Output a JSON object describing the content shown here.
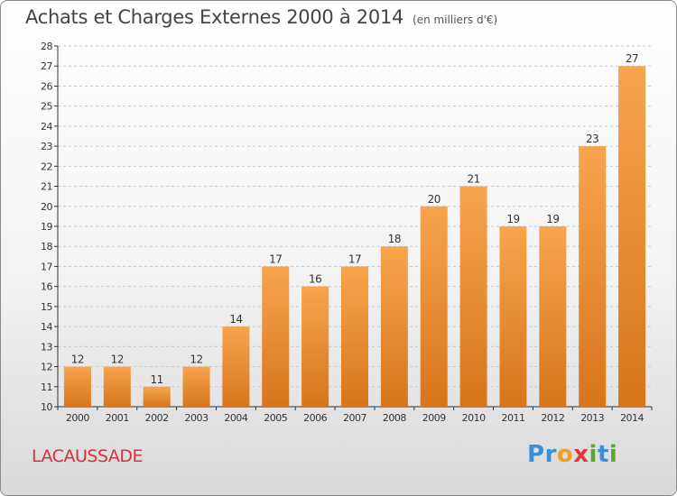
{
  "header": {
    "title": "Achats et Charges Externes 2000 à 2014",
    "unit": "(en milliers d'€)"
  },
  "commune": "LACAUSSADE",
  "logo": {
    "text": "Proxiti",
    "letters": [
      {
        "ch": "P",
        "color": "#3b8fd6"
      },
      {
        "ch": "r",
        "color": "#3b8fd6"
      },
      {
        "ch": "o",
        "color": "#f0a020"
      },
      {
        "ch": "x",
        "color": "#d93a3a"
      },
      {
        "ch": "i",
        "color": "#5aa830"
      },
      {
        "ch": "t",
        "color": "#3b8fd6"
      },
      {
        "ch": "i",
        "color": "#5aa830"
      }
    ]
  },
  "colors": {
    "bar_top": "#f7a54e",
    "bar_bottom": "#d7751c",
    "grid": "#c8c8c8",
    "axis": "#333333"
  },
  "chart_data": {
    "type": "bar",
    "title": "Achats et Charges Externes 2000 à 2014",
    "subtitle": "(en milliers d'€)",
    "categories": [
      "2000",
      "2001",
      "2002",
      "2003",
      "2004",
      "2005",
      "2006",
      "2007",
      "2008",
      "2009",
      "2010",
      "2011",
      "2012",
      "2013",
      "2014"
    ],
    "values": [
      12,
      12,
      11,
      12,
      14,
      17,
      16,
      17,
      18,
      20,
      21,
      19,
      19,
      23,
      27
    ],
    "ylim": [
      10,
      28
    ],
    "yticks": [
      10,
      11,
      12,
      13,
      14,
      15,
      16,
      17,
      18,
      19,
      20,
      21,
      22,
      23,
      24,
      25,
      26,
      27,
      28
    ],
    "grid": true,
    "data_labels": true
  }
}
